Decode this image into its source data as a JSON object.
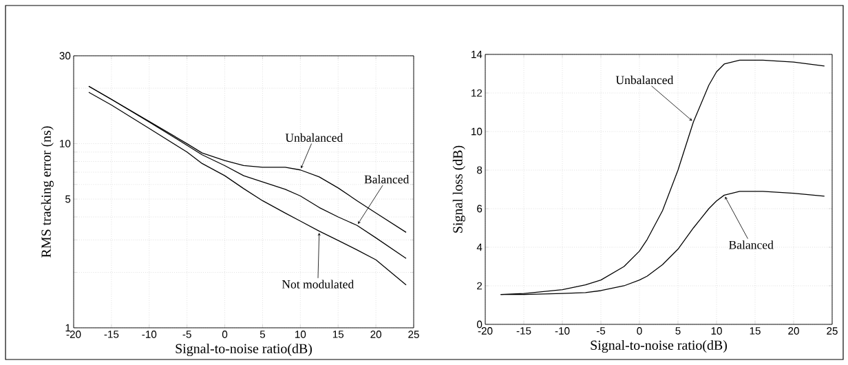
{
  "chart_data": [
    {
      "type": "line",
      "log": "y",
      "grid": true,
      "xlabel": "Signal-to-noise ratio(dB)",
      "ylabel": "RMS tracking error (ns)",
      "xlim": [
        -20,
        25
      ],
      "ylim": [
        1,
        30
      ],
      "xticks": [
        -20,
        -15,
        -10,
        -5,
        0,
        5,
        10,
        15,
        20,
        25
      ],
      "yticks": [
        1,
        {
          "value": 2,
          "label": null
        },
        {
          "value": 3,
          "label": null
        },
        {
          "value": 4,
          "label": null
        },
        5,
        {
          "value": 6,
          "label": null
        },
        {
          "value": 7,
          "label": null
        },
        {
          "value": 8,
          "label": null
        },
        {
          "value": 9,
          "label": null
        },
        10,
        {
          "value": 20,
          "label": null
        },
        30
      ],
      "x": [
        -18,
        -15,
        -10,
        -5,
        -3,
        0,
        2.5,
        5,
        8,
        10,
        12.5,
        15,
        17.5,
        20,
        24
      ],
      "series": [
        {
          "name": "Unbalanced",
          "color": "#000000",
          "values": [
            20.5,
            17.4,
            13.2,
            10,
            8.9,
            8.1,
            7.6,
            7.45,
            7.45,
            7.2,
            6.6,
            5.75,
            4.9,
            4.2,
            3.3
          ]
        },
        {
          "name": "Balanced",
          "color": "#000000",
          "values": [
            20.5,
            17.4,
            13.1,
            9.8,
            8.7,
            7.6,
            6.7,
            6.2,
            5.65,
            5.2,
            4.5,
            4.0,
            3.6,
            3.08,
            2.38
          ]
        },
        {
          "name": "Not modulated",
          "color": "#000000",
          "values": [
            19.0,
            16.2,
            12.1,
            9.0,
            7.8,
            6.7,
            5.7,
            4.9,
            4.2,
            3.8,
            3.35,
            2.98,
            2.65,
            2.34,
            1.71
          ]
        }
      ]
    },
    {
      "type": "line",
      "grid": true,
      "xlabel": "Signal-to-noise ratio(dB)",
      "ylabel": "Signal loss (dB)",
      "xlim": [
        -20,
        25
      ],
      "ylim": [
        0,
        14
      ],
      "xticks": [
        -20,
        -15,
        -10,
        -5,
        0,
        5,
        10,
        15,
        20,
        25
      ],
      "yticks": [
        0,
        2,
        4,
        6,
        8,
        10,
        12,
        14
      ],
      "x": [
        -18,
        -15,
        -10,
        -7,
        -5,
        -2,
        0,
        1,
        3,
        5,
        7,
        9,
        10,
        11,
        13,
        16,
        20,
        24
      ],
      "series": [
        {
          "name": "Unbalanced",
          "color": "#000000",
          "values": [
            1.55,
            1.6,
            1.8,
            2.05,
            2.3,
            3.0,
            3.8,
            4.4,
            5.9,
            8.0,
            10.5,
            12.4,
            13.1,
            13.5,
            13.7,
            13.7,
            13.6,
            13.4
          ]
        },
        {
          "name": "Balanced",
          "color": "#000000",
          "values": [
            1.55,
            1.55,
            1.6,
            1.65,
            1.75,
            2.0,
            2.3,
            2.5,
            3.1,
            3.9,
            5.0,
            6.0,
            6.4,
            6.7,
            6.9,
            6.9,
            6.8,
            6.65
          ]
        }
      ]
    }
  ]
}
